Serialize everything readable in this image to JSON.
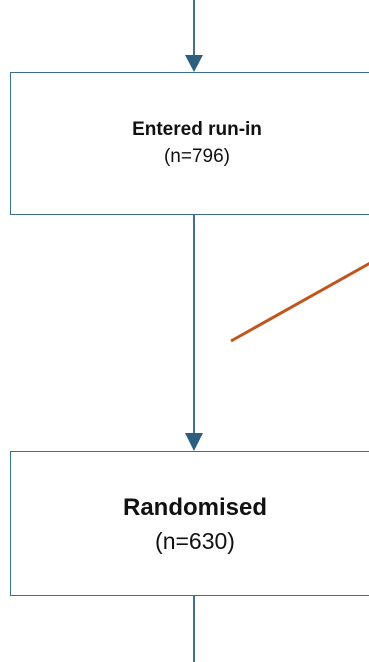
{
  "diagram": {
    "nodes": [
      {
        "id": "entered-run-in",
        "title": "Entered run-in",
        "count": "(n=796)"
      },
      {
        "id": "randomised",
        "title": "Randomised",
        "count": "(n=630)"
      }
    ],
    "edges": [
      {
        "from": "",
        "to": "entered-run-in"
      },
      {
        "from": "entered-run-in",
        "to": "randomised"
      },
      {
        "from": "randomised",
        "to": ""
      },
      {
        "from": "entered-run-in",
        "to": ""
      }
    ],
    "colors": {
      "arrow": "#2f5f7f",
      "box_border": "#3a6f8f",
      "side_branch": "#c0551e"
    }
  }
}
